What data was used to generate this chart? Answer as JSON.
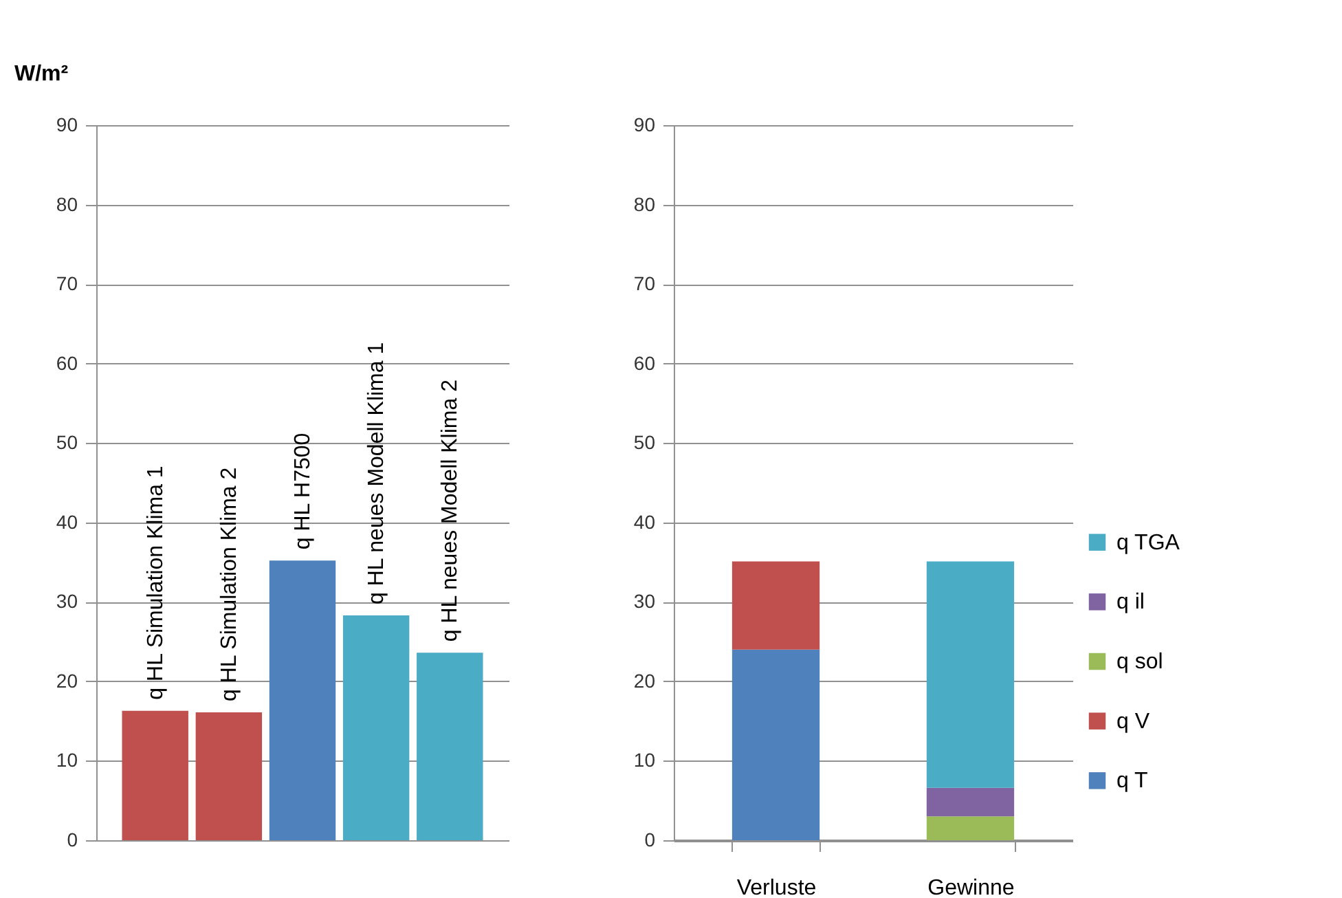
{
  "chart_data": [
    {
      "type": "bar",
      "ylabel": "W/m²",
      "categories": [
        "q HL Simulation Klima 1",
        "q HL Simulation Klima 2",
        "q HL H7500",
        "q HL neues Modell Klima 1",
        "q HL neues Modell Klima 2"
      ],
      "values": [
        16.3,
        16.1,
        35.2,
        28.3,
        23.6
      ],
      "colors": [
        "#c0504d",
        "#c0504d",
        "#4f81bd",
        "#4bacc6",
        "#4bacc6"
      ],
      "ylim": [
        0,
        90
      ],
      "yticks": [
        0,
        10,
        20,
        30,
        40,
        50,
        60,
        70,
        80,
        90
      ],
      "grid": "y"
    },
    {
      "type": "bar",
      "stacked": true,
      "categories": [
        "Verluste",
        "Gewinne"
      ],
      "series": [
        {
          "name": "q T",
          "color": "#4f81bd",
          "values": [
            24.0,
            null
          ]
        },
        {
          "name": "q V",
          "color": "#c0504d",
          "values": [
            11.1,
            null
          ]
        },
        {
          "name": "q sol",
          "color": "#9bbb59",
          "values": [
            null,
            3.0
          ]
        },
        {
          "name": "q il",
          "color": "#8064a2",
          "values": [
            null,
            3.6
          ]
        },
        {
          "name": "q TGA",
          "color": "#4bacc6",
          "values": [
            null,
            28.5
          ]
        }
      ],
      "ylim": [
        0,
        90
      ],
      "yticks": [
        0,
        10,
        20,
        30,
        40,
        50,
        60,
        70,
        80,
        90
      ],
      "grid": "y",
      "legend": "right"
    }
  ]
}
